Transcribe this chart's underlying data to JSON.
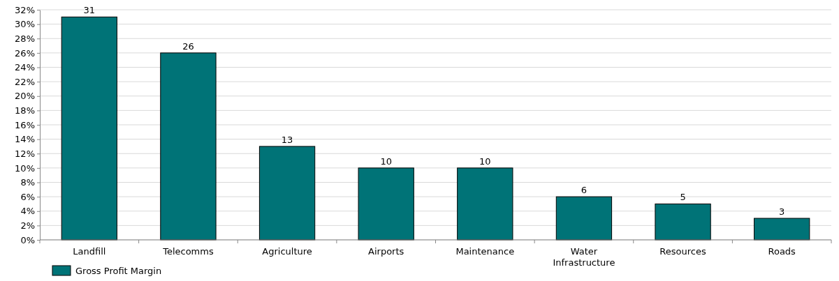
{
  "chart_data": {
    "type": "bar",
    "categories": [
      "Landfill",
      "Telecomms",
      "Agriculture",
      "Airports",
      "Maintenance",
      "Water Infrastructure",
      "Resources",
      "Roads"
    ],
    "series": [
      {
        "name": "Gross Profit Margin",
        "color": "#007377",
        "values": [
          31,
          26,
          13,
          10,
          10,
          6,
          5,
          3
        ]
      }
    ],
    "ylim": [
      0,
      32
    ],
    "yticks": [
      {
        "value": 0,
        "label": "0%"
      },
      {
        "value": 2,
        "label": "2%"
      },
      {
        "value": 4,
        "label": "4%"
      },
      {
        "value": 6,
        "label": "6%"
      },
      {
        "value": 8,
        "label": "8%"
      },
      {
        "value": 10,
        "label": "10%"
      },
      {
        "value": 12,
        "label": "12%"
      },
      {
        "value": 14,
        "label": "14%"
      },
      {
        "value": 16,
        "label": "16%"
      },
      {
        "value": 18,
        "label": "18%"
      },
      {
        "value": 20,
        "label": "20%"
      },
      {
        "value": 22,
        "label": "22%"
      },
      {
        "value": 24,
        "label": "24%"
      },
      {
        "value": 26,
        "label": "26%"
      },
      {
        "value": 28,
        "label": "28%"
      },
      {
        "value": 30,
        "label": "30%"
      },
      {
        "value": 32,
        "label": "32%"
      }
    ],
    "grid": "y",
    "data_labels": true,
    "legend": "bottom left"
  }
}
